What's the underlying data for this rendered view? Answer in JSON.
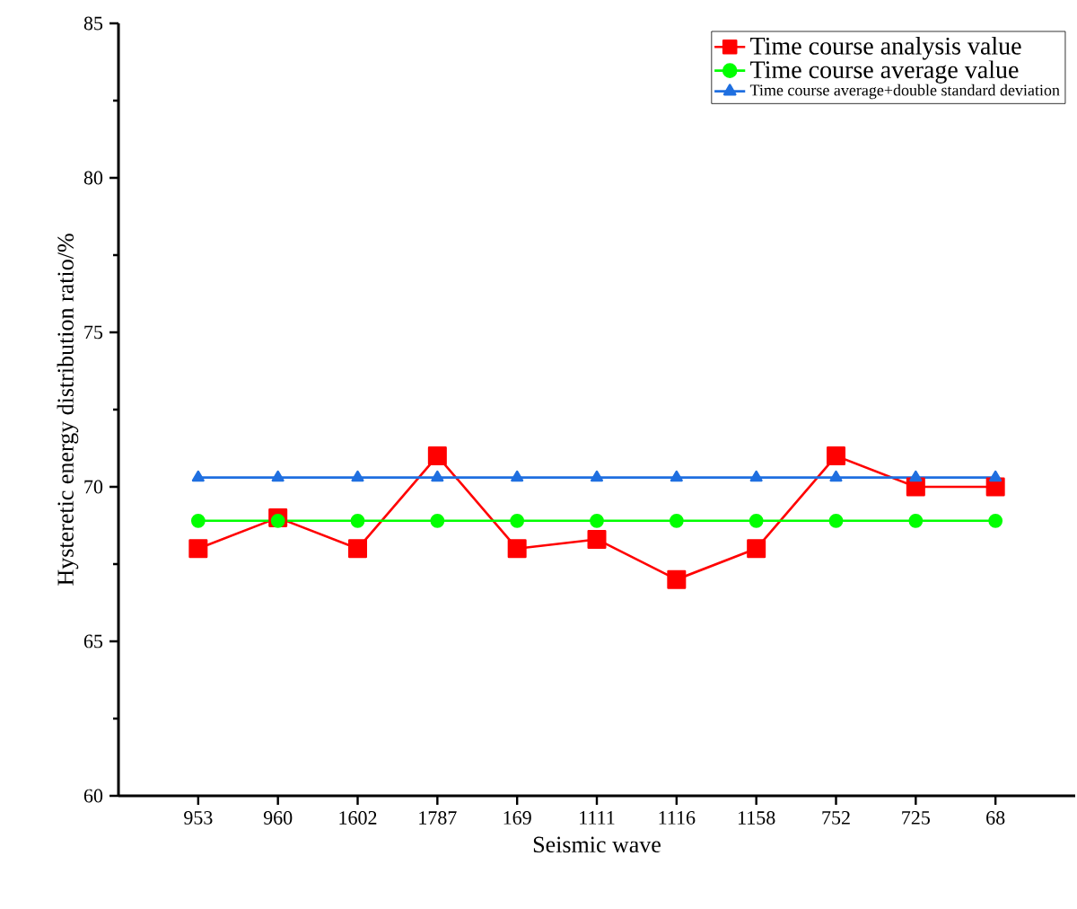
{
  "chart_data": {
    "type": "line",
    "xlabel": "Seismic wave",
    "ylabel": "Hysteretic energy distribution ratio/%",
    "categories": [
      "953",
      "960",
      "1602",
      "1787",
      "169",
      "1111",
      "1116",
      "1158",
      "752",
      "725",
      "68"
    ],
    "series": [
      {
        "name": "Time course analysis value",
        "color": "#ff0000",
        "marker": "square",
        "values": [
          68,
          69,
          68,
          71,
          68,
          68.3,
          67,
          68,
          71,
          70,
          70
        ]
      },
      {
        "name": "Time course average value",
        "color": "#00ff00",
        "marker": "circle",
        "values": [
          68.9,
          68.9,
          68.9,
          68.9,
          68.9,
          68.9,
          68.9,
          68.9,
          68.9,
          68.9,
          68.9
        ]
      },
      {
        "name": "Time course average+double standard deviation",
        "color": "#1f6fe0",
        "marker": "triangle",
        "values": [
          70.3,
          70.3,
          70.3,
          70.3,
          70.3,
          70.3,
          70.3,
          70.3,
          70.3,
          70.3,
          70.3
        ]
      }
    ],
    "ylim": [
      60,
      85
    ],
    "yticks": [
      60,
      65,
      70,
      75,
      80,
      85
    ],
    "grid": false,
    "legend": "top right",
    "line_style": "solid"
  }
}
